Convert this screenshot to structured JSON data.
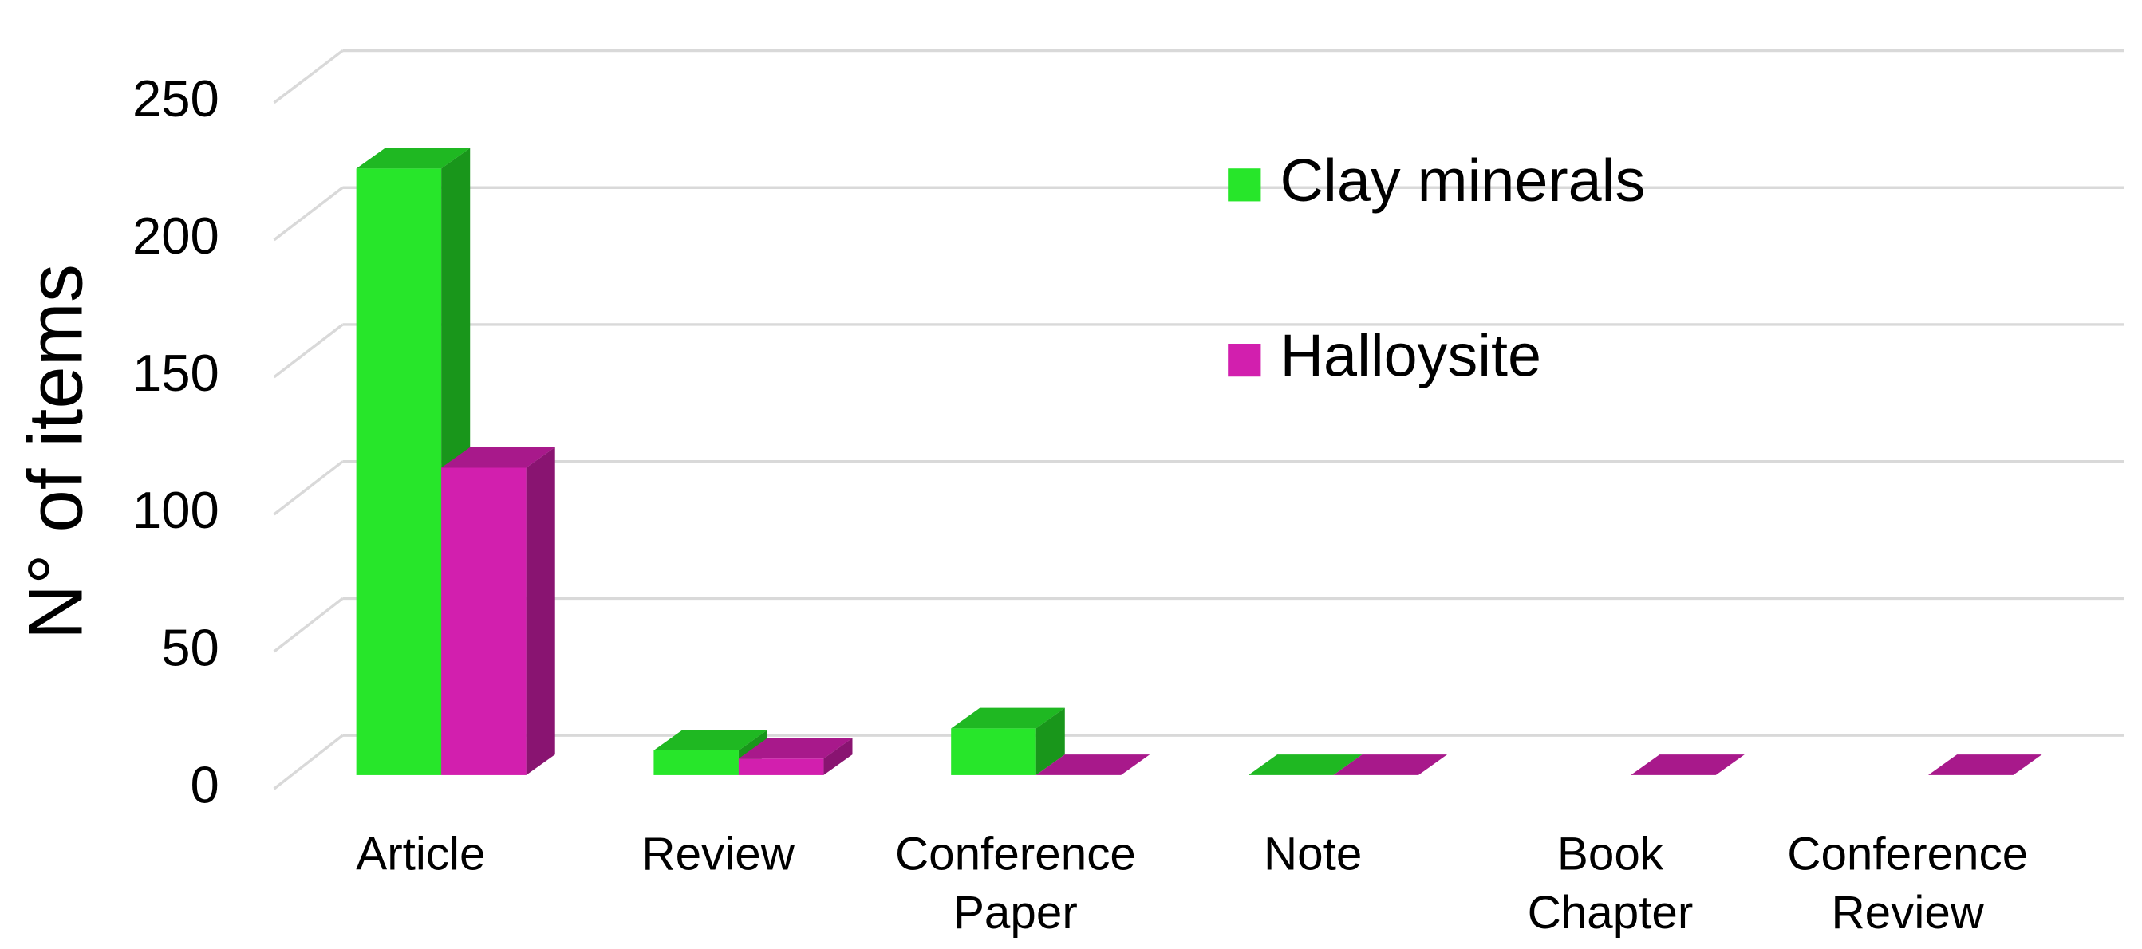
{
  "chart_data": {
    "type": "bar3d",
    "y_label": "N° of items",
    "categories": [
      "Article",
      "Review",
      "Conference Paper",
      "Note",
      "Book Chapter",
      "Conference Review"
    ],
    "series": [
      {
        "name": "Clay minerals",
        "color": "#27e62a",
        "values": [
          221,
          9,
          17,
          0,
          null,
          null
        ]
      },
      {
        "name": "Halloysite",
        "color": "#d21fae",
        "values": [
          112,
          6,
          0,
          0,
          0,
          0
        ]
      }
    ],
    "ylim": [
      0,
      250
    ],
    "yticks": [
      0,
      50,
      100,
      150,
      200,
      250
    ],
    "grid": true
  }
}
